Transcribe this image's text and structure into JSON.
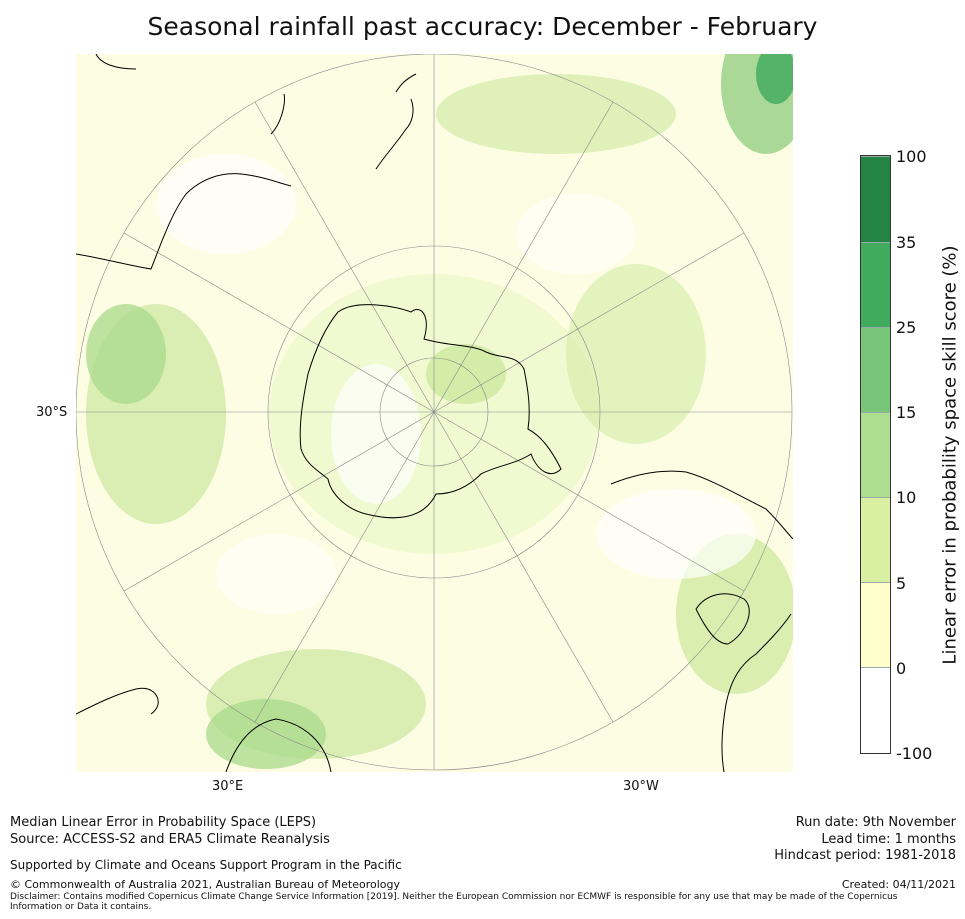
{
  "title": "Seasonal rainfall past accuracy: December - February",
  "map": {
    "projection": "south-polar-stereographic",
    "labels": {
      "lat": "30°S",
      "lon_east": "30°E",
      "lon_west": "30°W"
    }
  },
  "colorbar": {
    "label": "Linear error in probability space skill score (%)",
    "ticks": [
      "100",
      "35",
      "25",
      "15",
      "10",
      "5",
      "0",
      "-100"
    ],
    "colors": [
      "#238443",
      "#41ab5d",
      "#78c679",
      "#addd8e",
      "#d9f0a3",
      "#ffffcc",
      "#ffffff"
    ]
  },
  "footer": {
    "line1": "Median Linear Error in Probability Space (LEPS)",
    "line2": "Source: ACCESS-S2 and ERA5 Climate Reanalysis",
    "support": "Supported by Climate and Oceans Support Program in the Pacific",
    "copyright": "© Commonwealth of Australia 2021, Australian Bureau of Meteorology",
    "disclaimer": "Disclaimer: Contains modified Copernicus Climate Change Service Information [2019]. Neither the European Commission nor ECMWF is responsible for any use that may be made of the Copernicus Information or Data it contains.",
    "run_date": "Run date: 9th November",
    "lead_time": "Lead time: 1 months",
    "hindcast": "Hindcast period: 1981-2018",
    "created": "Created: 04/11/2021"
  }
}
